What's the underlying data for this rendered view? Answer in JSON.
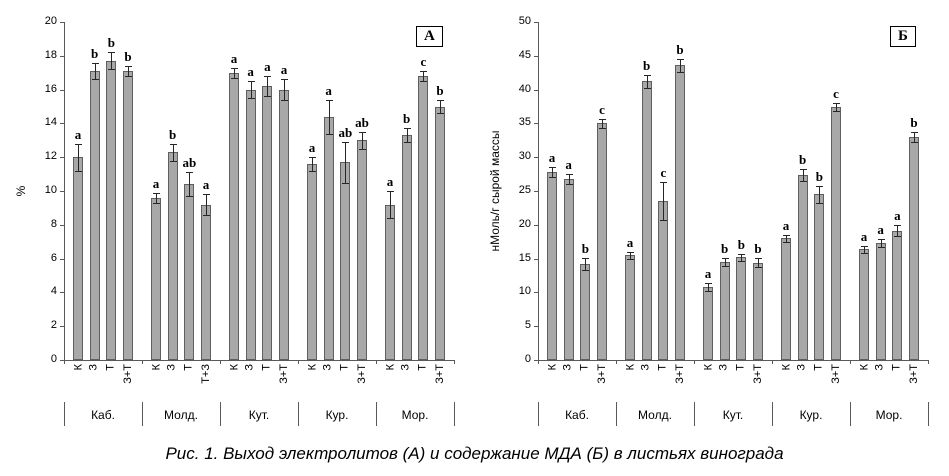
{
  "caption": "Рис. 1. Выход электролитов (А) и содержание МДА (Б) в листьях винограда",
  "chart_data": [
    {
      "type": "bar",
      "panel_label": "А",
      "title": "",
      "xlabel": "",
      "ylabel": "%",
      "ylim": [
        0,
        20
      ],
      "ytick_step": 2,
      "grid": false,
      "legend_position": "none",
      "bar_color": "#a8a8a8",
      "bar_border": "#5f5f5f",
      "error_bars": true,
      "groups": [
        {
          "name": "Каб.",
          "bars": [
            {
              "label": "К",
              "value": 12.0,
              "err": 0.8,
              "sig": "a"
            },
            {
              "label": "З",
              "value": 17.1,
              "err": 0.5,
              "sig": "b"
            },
            {
              "label": "Т",
              "value": 17.7,
              "err": 0.5,
              "sig": "b"
            },
            {
              "label": "З+Т",
              "value": 17.1,
              "err": 0.3,
              "sig": "b"
            }
          ]
        },
        {
          "name": "Молд.",
          "bars": [
            {
              "label": "К",
              "value": 9.6,
              "err": 0.3,
              "sig": "a"
            },
            {
              "label": "З",
              "value": 12.3,
              "err": 0.5,
              "sig": "b"
            },
            {
              "label": "Т",
              "value": 10.4,
              "err": 0.7,
              "sig": "ab"
            },
            {
              "label": "Т+З",
              "value": 9.2,
              "err": 0.6,
              "sig": "a"
            }
          ]
        },
        {
          "name": "Кут.",
          "bars": [
            {
              "label": "К",
              "value": 17.0,
              "err": 0.3,
              "sig": "a"
            },
            {
              "label": "З",
              "value": 16.0,
              "err": 0.5,
              "sig": "a"
            },
            {
              "label": "Т",
              "value": 16.2,
              "err": 0.6,
              "sig": "a"
            },
            {
              "label": "З+Т",
              "value": 16.0,
              "err": 0.6,
              "sig": "a"
            }
          ]
        },
        {
          "name": "Кур.",
          "bars": [
            {
              "label": "К",
              "value": 11.6,
              "err": 0.4,
              "sig": "a"
            },
            {
              "label": "З",
              "value": 14.4,
              "err": 1.0,
              "sig": "a"
            },
            {
              "label": "Т",
              "value": 11.7,
              "err": 1.2,
              "sig": "ab"
            },
            {
              "label": "З+Т",
              "value": 13.0,
              "err": 0.5,
              "sig": "ab"
            }
          ]
        },
        {
          "name": "Мор.",
          "bars": [
            {
              "label": "К",
              "value": 9.2,
              "err": 0.8,
              "sig": "a"
            },
            {
              "label": "З",
              "value": 13.3,
              "err": 0.4,
              "sig": "b"
            },
            {
              "label": "Т",
              "value": 16.8,
              "err": 0.3,
              "sig": "c"
            },
            {
              "label": "З+Т",
              "value": 15.0,
              "err": 0.4,
              "sig": "b"
            }
          ]
        }
      ]
    },
    {
      "type": "bar",
      "panel_label": "Б",
      "title": "",
      "xlabel": "",
      "ylabel": "нМоль/г сырой массы",
      "ylim": [
        0,
        50
      ],
      "ytick_step": 5,
      "grid": false,
      "legend_position": "none",
      "bar_color": "#a8a8a8",
      "bar_border": "#5f5f5f",
      "error_bars": true,
      "groups": [
        {
          "name": "Каб.",
          "bars": [
            {
              "label": "К",
              "value": 27.8,
              "err": 0.8,
              "sig": "a"
            },
            {
              "label": "З",
              "value": 26.8,
              "err": 0.7,
              "sig": "a"
            },
            {
              "label": "Т",
              "value": 14.2,
              "err": 0.9,
              "sig": "b"
            },
            {
              "label": "З+Т",
              "value": 35.0,
              "err": 0.7,
              "sig": "c"
            }
          ]
        },
        {
          "name": "Молд.",
          "bars": [
            {
              "label": "К",
              "value": 15.5,
              "err": 0.5,
              "sig": "a"
            },
            {
              "label": "З",
              "value": 41.2,
              "err": 1.0,
              "sig": "b"
            },
            {
              "label": "Т",
              "value": 23.5,
              "err": 2.8,
              "sig": "c"
            },
            {
              "label": "З+Т",
              "value": 43.6,
              "err": 1.0,
              "sig": "b"
            }
          ]
        },
        {
          "name": "Кут.",
          "bars": [
            {
              "label": "К",
              "value": 10.8,
              "err": 0.6,
              "sig": "a"
            },
            {
              "label": "З",
              "value": 14.5,
              "err": 0.6,
              "sig": "b"
            },
            {
              "label": "Т",
              "value": 15.2,
              "err": 0.5,
              "sig": "b"
            },
            {
              "label": "З+Т",
              "value": 14.4,
              "err": 0.7,
              "sig": "b"
            }
          ]
        },
        {
          "name": "Кур.",
          "bars": [
            {
              "label": "К",
              "value": 18.0,
              "err": 0.5,
              "sig": "a"
            },
            {
              "label": "З",
              "value": 27.4,
              "err": 0.9,
              "sig": "b"
            },
            {
              "label": "Т",
              "value": 24.5,
              "err": 1.3,
              "sig": "b"
            },
            {
              "label": "З+Т",
              "value": 37.4,
              "err": 0.6,
              "sig": "c"
            }
          ]
        },
        {
          "name": "Мор.",
          "bars": [
            {
              "label": "К",
              "value": 16.4,
              "err": 0.5,
              "sig": "a"
            },
            {
              "label": "З",
              "value": 17.3,
              "err": 0.6,
              "sig": "a"
            },
            {
              "label": "Т",
              "value": 19.1,
              "err": 0.8,
              "sig": "a"
            },
            {
              "label": "З+Т",
              "value": 33.0,
              "err": 0.8,
              "sig": "b"
            }
          ]
        }
      ]
    }
  ]
}
